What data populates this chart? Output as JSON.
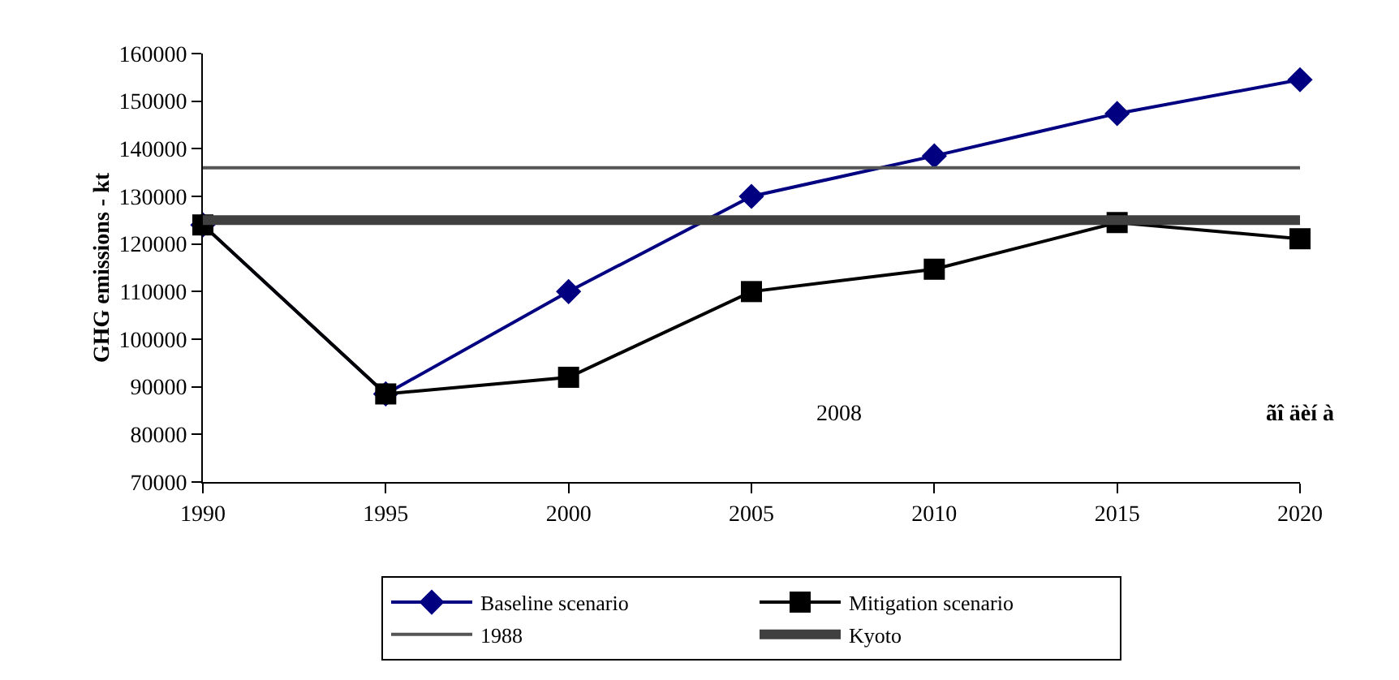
{
  "chart_data": {
    "type": "line",
    "ylabel": "GHG emissions - kt",
    "x": [
      1990,
      1995,
      2000,
      2005,
      2010,
      2015,
      2020
    ],
    "series": [
      {
        "name": "Baseline scenario",
        "color": "#000080",
        "marker": "diamond",
        "values": [
          124000,
          88500,
          110000,
          130000,
          138500,
          147400,
          154500
        ]
      },
      {
        "name": "Mitigation scenario",
        "color": "#000000",
        "marker": "square",
        "values": [
          124000,
          88500,
          92000,
          110000,
          114700,
          124500,
          121100
        ]
      },
      {
        "name": "1988",
        "color": "#555555",
        "marker": "none",
        "x": [
          1990,
          2020
        ],
        "values": [
          136000,
          136000
        ]
      }
    ],
    "ref_lines": [
      {
        "axis": "y",
        "value": 125000,
        "label": "Kyoto",
        "color": "#404040",
        "line_style": "solid"
      }
    ],
    "annotations": [
      "2008",
      "ãî äèí à"
    ],
    "xlim": [
      1990,
      2020
    ],
    "xticks": [
      1990,
      1995,
      2000,
      2005,
      2010,
      2015,
      2020
    ],
    "ylim": [
      70000,
      160000
    ],
    "yticks": [
      70000,
      80000,
      90000,
      100000,
      110000,
      120000,
      130000,
      140000,
      150000,
      160000
    ],
    "grid": false,
    "legend": "bottom"
  }
}
